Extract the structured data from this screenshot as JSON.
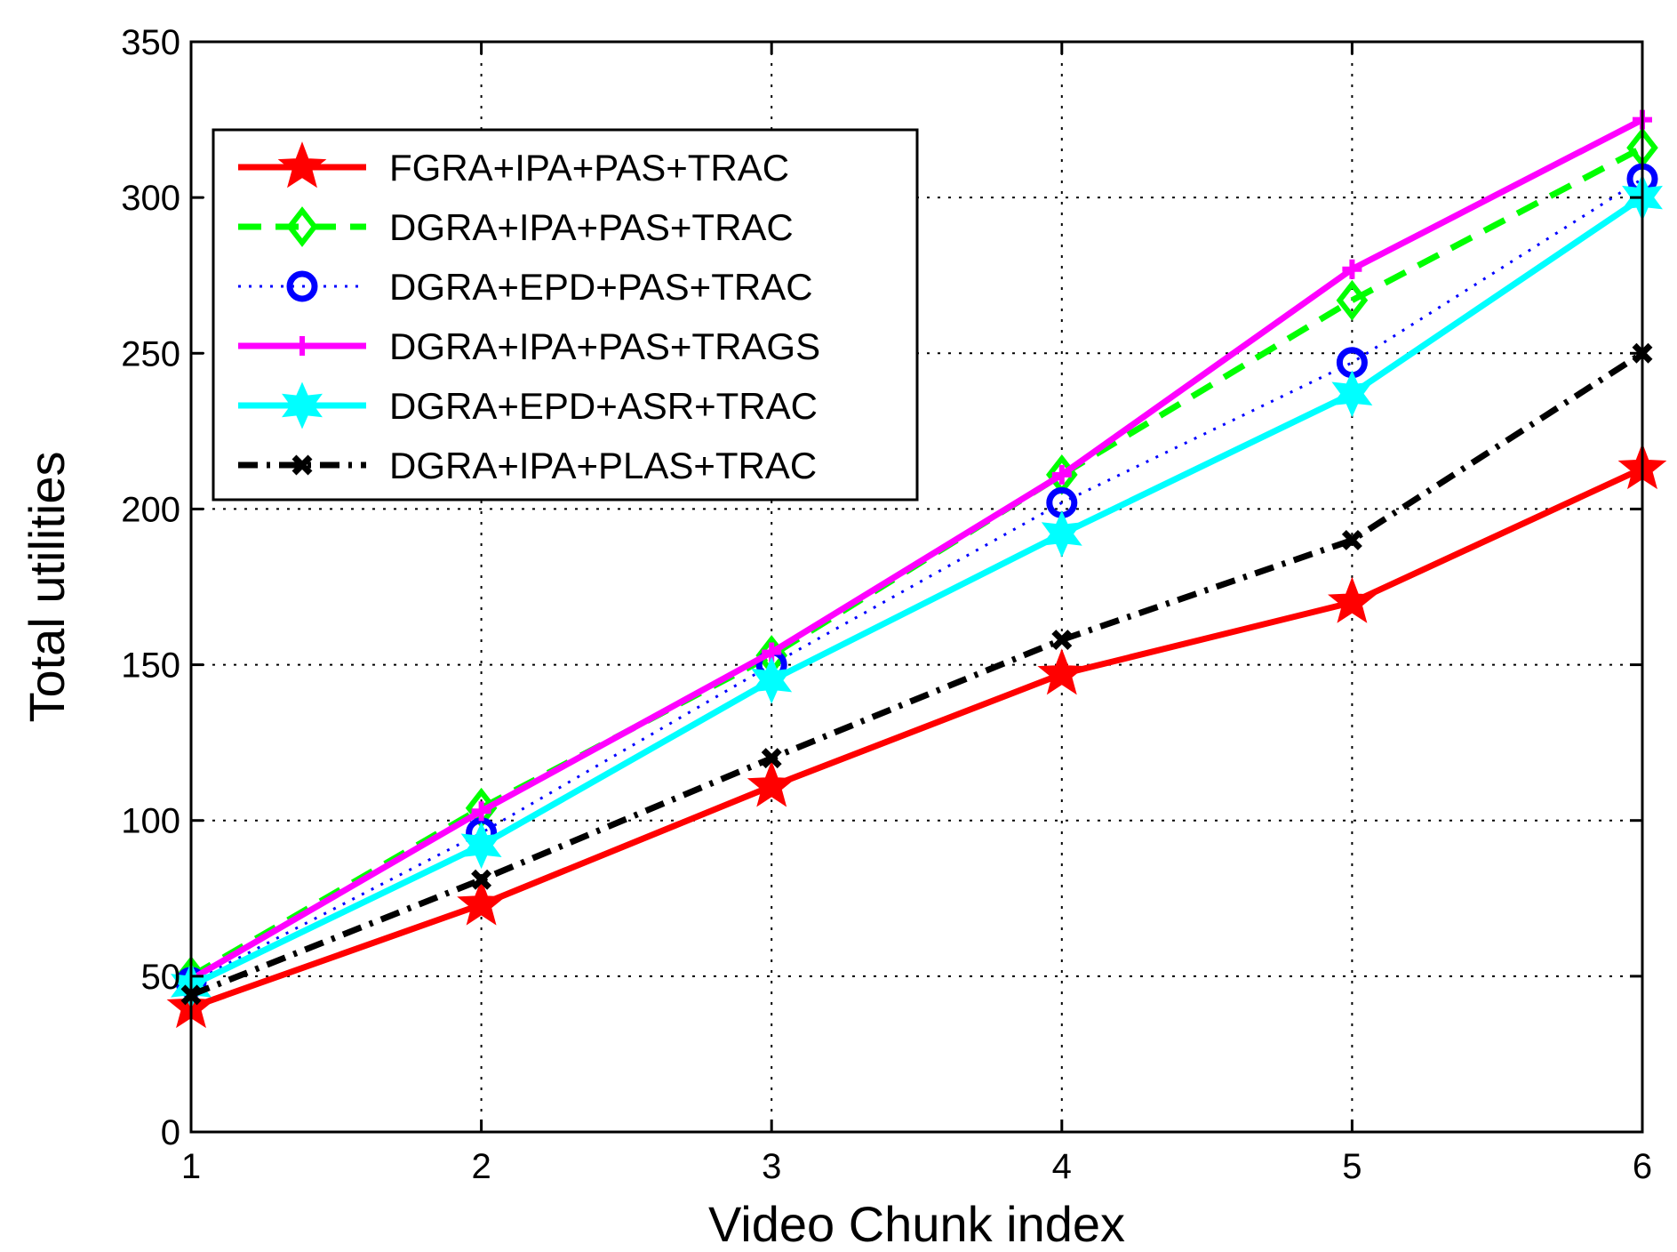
{
  "chart_data": {
    "type": "line",
    "title": "",
    "xlabel": "Video Chunk index",
    "ylabel": "Total utilities",
    "xlim": [
      1,
      6
    ],
    "ylim": [
      0,
      350
    ],
    "xticks": [
      1,
      2,
      3,
      4,
      5,
      6
    ],
    "yticks": [
      0,
      50,
      100,
      150,
      200,
      250,
      300,
      350
    ],
    "grid": true,
    "legend_position": "top-left",
    "x": [
      1,
      2,
      3,
      4,
      5,
      6
    ],
    "series": [
      {
        "name": "FGRA+IPA+PAS+TRAC",
        "values": [
          40,
          73,
          111,
          147,
          170,
          213
        ],
        "color": "#ff0000",
        "dash": "solid",
        "marker": "star"
      },
      {
        "name": "DGRA+IPA+PAS+TRAC",
        "values": [
          50,
          104,
          153,
          211,
          267,
          316
        ],
        "color": "#00ff00",
        "dash": "dashed",
        "marker": "diamond"
      },
      {
        "name": "DGRA+EPD+PAS+TRAC",
        "values": [
          48,
          96,
          150,
          202,
          247,
          306
        ],
        "color": "#0000ff",
        "dash": "dotted",
        "marker": "circle"
      },
      {
        "name": "DGRA+IPA+PAS+TRAGS",
        "values": [
          49,
          103,
          154,
          211,
          277,
          325
        ],
        "color": "#ff00ff",
        "dash": "solid",
        "marker": "plus"
      },
      {
        "name": "DGRA+EPD+ASR+TRAC",
        "values": [
          47,
          92,
          145,
          192,
          237,
          300
        ],
        "color": "#00ffff",
        "dash": "solid",
        "marker": "hexagram"
      },
      {
        "name": "DGRA+IPA+PLAS+TRAC",
        "values": [
          44,
          81,
          120,
          158,
          190,
          250
        ],
        "color": "#000000",
        "dash": "dashdot",
        "marker": "x"
      }
    ]
  }
}
